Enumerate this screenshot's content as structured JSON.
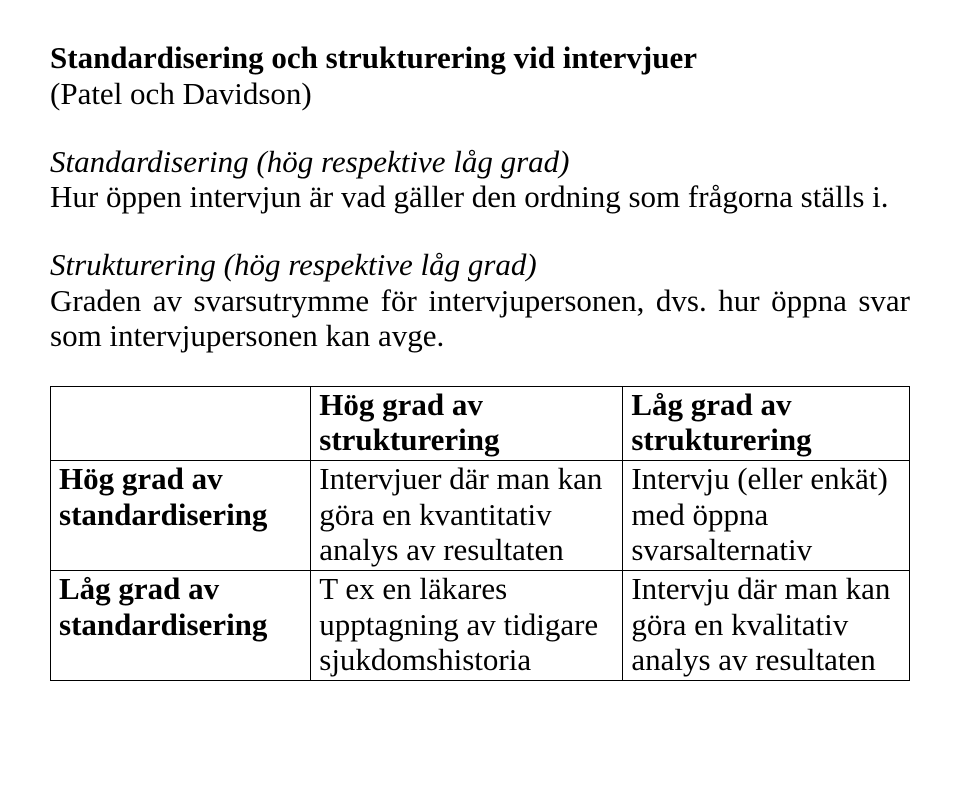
{
  "header": {
    "title": "Standardisering och strukturering vid intervjuer",
    "subtitle": "(Patel och Davidson)"
  },
  "para1": {
    "label": "Standardisering (hög respektive låg grad)",
    "body": "Hur öppen intervjun är vad gäller den ordning som frågorna ställs i."
  },
  "para2": {
    "label": "Strukturering (hög respektive låg grad)",
    "body": "Graden av svarsutrymme för intervjupersonen, dvs. hur öppna svar som intervjupersonen kan avge."
  },
  "table": {
    "header": {
      "col2": "Hög grad av strukturering",
      "col3": "Låg grad av strukturering"
    },
    "row1": {
      "label": "Hög grad av standardisering",
      "col2": "Intervjuer där man kan göra en kvantitativ analys av resultaten",
      "col3": "Intervju (eller enkät) med öppna svarsalternativ"
    },
    "row2": {
      "label": "Låg grad av standardisering",
      "col2": "T ex en läkares upptagning av tidigare sjukdomshistoria",
      "col3": "Intervju där man kan göra en kvalitativ analys av resultaten"
    }
  }
}
